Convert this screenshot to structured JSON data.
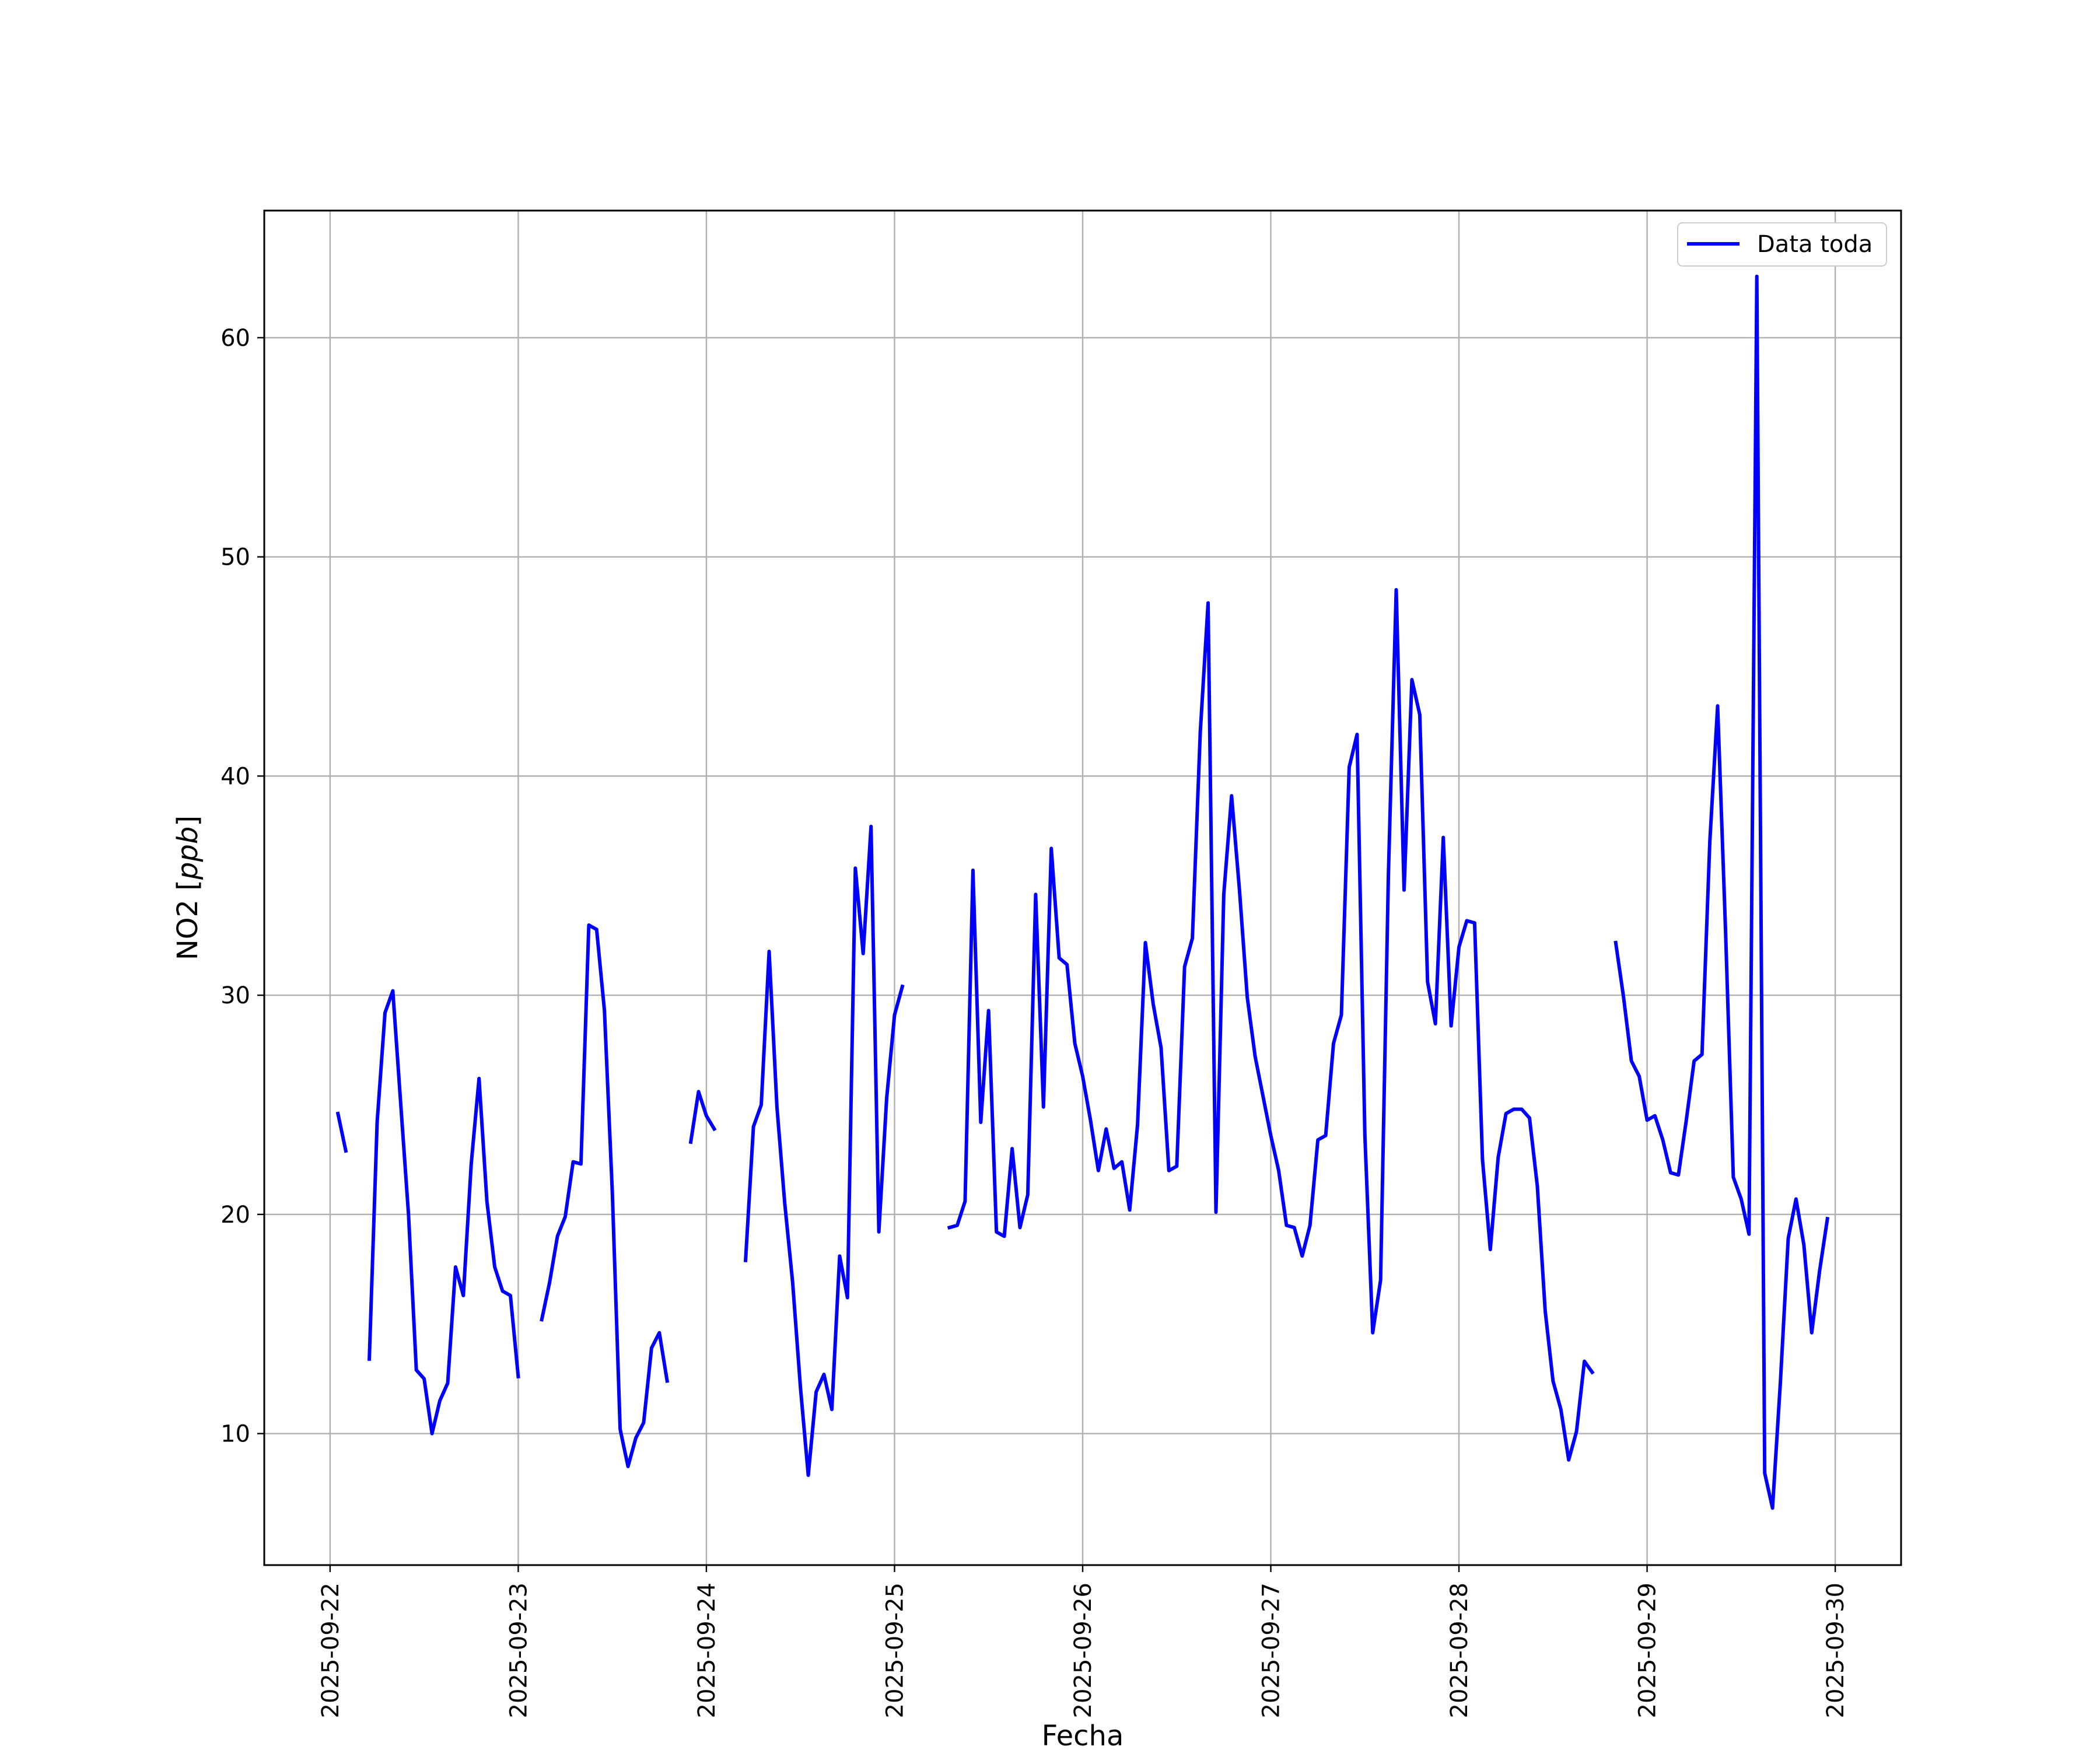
{
  "chart_data": {
    "type": "line",
    "title": "",
    "xlabel": "Fecha",
    "ylabel": {
      "main": "NO2 [",
      "unit": "ppb",
      "close": "]"
    },
    "x_ticks": [
      "2025-09-22",
      "2025-09-23",
      "2025-09-24",
      "2025-09-25",
      "2025-09-26",
      "2025-09-27",
      "2025-09-28",
      "2025-09-29",
      "2025-09-30"
    ],
    "y_ticks": [
      10,
      20,
      30,
      40,
      50,
      60
    ],
    "xlim": [
      "2025-09-21T15:36",
      "2025-09-30T08:24"
    ],
    "ylim": [
      4,
      65.8
    ],
    "grid": true,
    "legend_position": "top-right",
    "series": [
      {
        "name": "Data toda",
        "color": "#0000ff",
        "points": [
          [
            "2025-09-22T01:00",
            24.6
          ],
          [
            "2025-09-22T02:00",
            22.9
          ],
          [
            "2025-09-22T03:00",
            null
          ],
          [
            "2025-09-22T05:00",
            13.4
          ],
          [
            "2025-09-22T06:00",
            24.2
          ],
          [
            "2025-09-22T07:00",
            29.2
          ],
          [
            "2025-09-22T08:00",
            30.2
          ],
          [
            "2025-09-22T09:00",
            25.1
          ],
          [
            "2025-09-22T10:00",
            20.0
          ],
          [
            "2025-09-22T11:00",
            12.9
          ],
          [
            "2025-09-22T12:00",
            12.5
          ],
          [
            "2025-09-22T13:00",
            10.0
          ],
          [
            "2025-09-22T14:00",
            11.5
          ],
          [
            "2025-09-22T15:00",
            12.3
          ],
          [
            "2025-09-22T16:00",
            17.6
          ],
          [
            "2025-09-22T17:00",
            16.3
          ],
          [
            "2025-09-22T18:00",
            22.3
          ],
          [
            "2025-09-22T19:00",
            26.2
          ],
          [
            "2025-09-22T20:00",
            20.6
          ],
          [
            "2025-09-22T21:00",
            17.6
          ],
          [
            "2025-09-22T22:00",
            16.5
          ],
          [
            "2025-09-22T23:00",
            16.3
          ],
          [
            "2025-09-23T00:00",
            12.6
          ],
          [
            "2025-09-23T01:00",
            null
          ],
          [
            "2025-09-23T03:00",
            15.2
          ],
          [
            "2025-09-23T04:00",
            16.9
          ],
          [
            "2025-09-23T05:00",
            19.0
          ],
          [
            "2025-09-23T06:00",
            19.9
          ],
          [
            "2025-09-23T07:00",
            22.4
          ],
          [
            "2025-09-23T08:00",
            22.3
          ],
          [
            "2025-09-23T09:00",
            33.2
          ],
          [
            "2025-09-23T10:00",
            33.0
          ],
          [
            "2025-09-23T11:00",
            29.3
          ],
          [
            "2025-09-23T12:00",
            21.0
          ],
          [
            "2025-09-23T13:00",
            10.2
          ],
          [
            "2025-09-23T14:00",
            8.5
          ],
          [
            "2025-09-23T15:00",
            9.8
          ],
          [
            "2025-09-23T16:00",
            10.5
          ],
          [
            "2025-09-23T17:00",
            13.9
          ],
          [
            "2025-09-23T18:00",
            14.6
          ],
          [
            "2025-09-23T19:00",
            12.4
          ],
          [
            "2025-09-23T20:00",
            null
          ],
          [
            "2025-09-23T22:00",
            23.3
          ],
          [
            "2025-09-23T23:00",
            25.6
          ],
          [
            "2025-09-24T00:00",
            24.5
          ],
          [
            "2025-09-24T01:00",
            23.9
          ],
          [
            "2025-09-24T02:00",
            null
          ],
          [
            "2025-09-24T05:00",
            17.9
          ],
          [
            "2025-09-24T06:00",
            24.0
          ],
          [
            "2025-09-24T07:00",
            25.0
          ],
          [
            "2025-09-24T08:00",
            32.0
          ],
          [
            "2025-09-24T09:00",
            24.9
          ],
          [
            "2025-09-24T10:00",
            20.5
          ],
          [
            "2025-09-24T11:00",
            16.9
          ],
          [
            "2025-09-24T12:00",
            12.1
          ],
          [
            "2025-09-24T13:00",
            8.1
          ],
          [
            "2025-09-24T14:00",
            11.9
          ],
          [
            "2025-09-24T15:00",
            12.7
          ],
          [
            "2025-09-24T16:00",
            11.1
          ],
          [
            "2025-09-24T17:00",
            18.1
          ],
          [
            "2025-09-24T18:00",
            16.2
          ],
          [
            "2025-09-24T19:00",
            35.8
          ],
          [
            "2025-09-24T20:00",
            31.9
          ],
          [
            "2025-09-24T21:00",
            37.7
          ],
          [
            "2025-09-24T22:00",
            19.2
          ],
          [
            "2025-09-24T23:00",
            25.3
          ],
          [
            "2025-09-25T00:00",
            29.1
          ],
          [
            "2025-09-25T01:00",
            30.4
          ],
          [
            "2025-09-25T02:00",
            null
          ],
          [
            "2025-09-25T07:00",
            19.4
          ],
          [
            "2025-09-25T08:00",
            19.5
          ],
          [
            "2025-09-25T09:00",
            20.6
          ],
          [
            "2025-09-25T10:00",
            35.7
          ],
          [
            "2025-09-25T11:00",
            24.2
          ],
          [
            "2025-09-25T12:00",
            29.3
          ],
          [
            "2025-09-25T13:00",
            19.2
          ],
          [
            "2025-09-25T14:00",
            19.0
          ],
          [
            "2025-09-25T15:00",
            23.0
          ],
          [
            "2025-09-25T16:00",
            19.4
          ],
          [
            "2025-09-25T17:00",
            20.9
          ],
          [
            "2025-09-25T18:00",
            34.6
          ],
          [
            "2025-09-25T19:00",
            24.9
          ],
          [
            "2025-09-25T20:00",
            36.7
          ],
          [
            "2025-09-25T21:00",
            31.7
          ],
          [
            "2025-09-25T22:00",
            31.4
          ],
          [
            "2025-09-25T23:00",
            27.8
          ],
          [
            "2025-09-26T00:00",
            26.3
          ],
          [
            "2025-09-26T01:00",
            24.3
          ],
          [
            "2025-09-26T02:00",
            22.0
          ],
          [
            "2025-09-26T03:00",
            23.9
          ],
          [
            "2025-09-26T04:00",
            22.1
          ],
          [
            "2025-09-26T05:00",
            22.4
          ],
          [
            "2025-09-26T06:00",
            20.2
          ],
          [
            "2025-09-26T07:00",
            24.1
          ],
          [
            "2025-09-26T08:00",
            32.4
          ],
          [
            "2025-09-26T09:00",
            29.6
          ],
          [
            "2025-09-26T10:00",
            27.6
          ],
          [
            "2025-09-26T11:00",
            22.0
          ],
          [
            "2025-09-26T12:00",
            22.2
          ],
          [
            "2025-09-26T13:00",
            31.3
          ],
          [
            "2025-09-26T14:00",
            32.6
          ],
          [
            "2025-09-26T15:00",
            42.0
          ],
          [
            "2025-09-26T16:00",
            47.9
          ],
          [
            "2025-09-26T17:00",
            20.1
          ],
          [
            "2025-09-26T18:00",
            34.6
          ],
          [
            "2025-09-26T19:00",
            39.1
          ],
          [
            "2025-09-26T20:00",
            34.8
          ],
          [
            "2025-09-26T21:00",
            29.9
          ],
          [
            "2025-09-26T22:00",
            27.2
          ],
          [
            "2025-09-26T23:00",
            25.4
          ],
          [
            "2025-09-27T00:00",
            23.6
          ],
          [
            "2025-09-27T01:00",
            22.0
          ],
          [
            "2025-09-27T02:00",
            19.5
          ],
          [
            "2025-09-27T03:00",
            19.4
          ],
          [
            "2025-09-27T04:00",
            18.1
          ],
          [
            "2025-09-27T05:00",
            19.5
          ],
          [
            "2025-09-27T06:00",
            23.4
          ],
          [
            "2025-09-27T07:00",
            23.6
          ],
          [
            "2025-09-27T08:00",
            27.8
          ],
          [
            "2025-09-27T09:00",
            29.1
          ],
          [
            "2025-09-27T10:00",
            40.4
          ],
          [
            "2025-09-27T11:00",
            41.9
          ],
          [
            "2025-09-27T12:00",
            23.6
          ],
          [
            "2025-09-27T13:00",
            14.6
          ],
          [
            "2025-09-27T14:00",
            17.0
          ],
          [
            "2025-09-27T15:00",
            35.5
          ],
          [
            "2025-09-27T16:00",
            48.5
          ],
          [
            "2025-09-27T17:00",
            34.8
          ],
          [
            "2025-09-27T18:00",
            44.4
          ],
          [
            "2025-09-27T19:00",
            42.8
          ],
          [
            "2025-09-27T20:00",
            30.6
          ],
          [
            "2025-09-27T21:00",
            28.7
          ],
          [
            "2025-09-27T22:00",
            37.2
          ],
          [
            "2025-09-27T23:00",
            28.6
          ],
          [
            "2025-09-28T00:00",
            32.2
          ],
          [
            "2025-09-28T01:00",
            33.4
          ],
          [
            "2025-09-28T02:00",
            33.3
          ],
          [
            "2025-09-28T03:00",
            22.5
          ],
          [
            "2025-09-28T04:00",
            18.4
          ],
          [
            "2025-09-28T05:00",
            22.6
          ],
          [
            "2025-09-28T06:00",
            24.6
          ],
          [
            "2025-09-28T07:00",
            24.8
          ],
          [
            "2025-09-28T08:00",
            24.8
          ],
          [
            "2025-09-28T09:00",
            24.4
          ],
          [
            "2025-09-28T10:00",
            21.3
          ],
          [
            "2025-09-28T11:00",
            15.6
          ],
          [
            "2025-09-28T12:00",
            12.4
          ],
          [
            "2025-09-28T13:00",
            11.1
          ],
          [
            "2025-09-28T14:00",
            8.8
          ],
          [
            "2025-09-28T15:00",
            10.1
          ],
          [
            "2025-09-28T16:00",
            13.3
          ],
          [
            "2025-09-28T17:00",
            12.8
          ],
          [
            "2025-09-28T18:00",
            null
          ],
          [
            "2025-09-28T20:00",
            32.4
          ],
          [
            "2025-09-28T21:00",
            29.9
          ],
          [
            "2025-09-28T22:00",
            27.0
          ],
          [
            "2025-09-28T23:00",
            26.3
          ],
          [
            "2025-09-29T00:00",
            24.3
          ],
          [
            "2025-09-29T01:00",
            24.5
          ],
          [
            "2025-09-29T02:00",
            23.4
          ],
          [
            "2025-09-29T03:00",
            21.9
          ],
          [
            "2025-09-29T04:00",
            21.8
          ],
          [
            "2025-09-29T05:00",
            24.3
          ],
          [
            "2025-09-29T06:00",
            27.0
          ],
          [
            "2025-09-29T07:00",
            27.3
          ],
          [
            "2025-09-29T08:00",
            37.0
          ],
          [
            "2025-09-29T09:00",
            43.2
          ],
          [
            "2025-09-29T10:00",
            33.0
          ],
          [
            "2025-09-29T11:00",
            21.7
          ],
          [
            "2025-09-29T12:00",
            20.7
          ],
          [
            "2025-09-29T13:00",
            19.1
          ],
          [
            "2025-09-29T14:00",
            62.8
          ],
          [
            "2025-09-29T15:00",
            8.2
          ],
          [
            "2025-09-29T16:00",
            6.6
          ],
          [
            "2025-09-29T17:00",
            12.3
          ],
          [
            "2025-09-29T18:00",
            18.9
          ],
          [
            "2025-09-29T19:00",
            20.7
          ],
          [
            "2025-09-29T20:00",
            18.6
          ],
          [
            "2025-09-29T21:00",
            14.6
          ],
          [
            "2025-09-29T22:00",
            17.4
          ],
          [
            "2025-09-29T23:00",
            19.8
          ]
        ]
      }
    ]
  }
}
